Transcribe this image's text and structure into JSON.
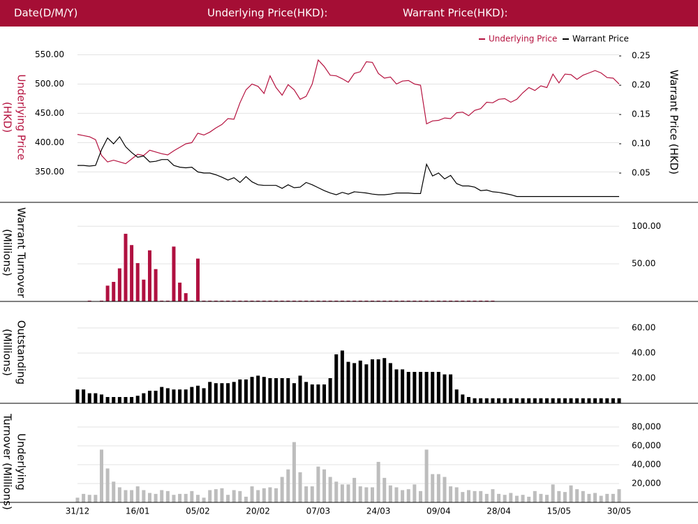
{
  "header": {
    "labels": [
      "Date(D/M/Y)",
      "Underlying Price(HKD):",
      "Warrant Price(HKD):"
    ]
  },
  "chart_data": [
    {
      "type": "line",
      "legend": "top-right",
      "y_label": [
        "Underlying Price",
        "(HKD)"
      ],
      "y2_label": "Warrant  Price (HKD)",
      "ylim": [
        298,
        572
      ],
      "yticks": [
        {
          "value": 350,
          "label": "350.00"
        },
        {
          "value": 400,
          "label": "400.00"
        },
        {
          "value": 450,
          "label": "450.00"
        },
        {
          "value": 500,
          "label": "500.00"
        },
        {
          "value": 550,
          "label": "550.00"
        }
      ],
      "y2lim": [
        0,
        0.274
      ],
      "y2ticks": [
        0.05,
        {
          "value": 0.1,
          "label": "0.10"
        },
        0.15,
        {
          "value": 0.2,
          "label": "0.20"
        },
        0.25
      ],
      "grid": true,
      "series": [
        {
          "name": "Underlying Price",
          "color": "#b5123f",
          "values": [
            414,
            412,
            410,
            405,
            378,
            367,
            370,
            367,
            364,
            372,
            380,
            378,
            387,
            384,
            381,
            379,
            386,
            392,
            398,
            400,
            416,
            413,
            418,
            425,
            431,
            441,
            440,
            468,
            490,
            500,
            496,
            484,
            514,
            494,
            481,
            499,
            490,
            474,
            479,
            500,
            541,
            530,
            515,
            514,
            509,
            503,
            518,
            521,
            538,
            537,
            518,
            510,
            512,
            500,
            505,
            506,
            500,
            498,
            432,
            437,
            438,
            442,
            441,
            451,
            452,
            446,
            455,
            458,
            469,
            468,
            474,
            475,
            469,
            474,
            485,
            494,
            489,
            497,
            494,
            517,
            502,
            517,
            516,
            508,
            515,
            519,
            523,
            519,
            511,
            510,
            500
          ]
        },
        {
          "name": "Warrant Price",
          "color": "#000000",
          "axis": "y2",
          "values": [
            0.063,
            0.063,
            0.062,
            0.063,
            0.09,
            0.11,
            0.1,
            0.112,
            0.095,
            0.085,
            0.077,
            0.079,
            0.069,
            0.07,
            0.073,
            0.073,
            0.063,
            0.06,
            0.059,
            0.06,
            0.052,
            0.05,
            0.05,
            0.047,
            0.043,
            0.038,
            0.042,
            0.034,
            0.044,
            0.035,
            0.03,
            0.029,
            0.029,
            0.029,
            0.024,
            0.03,
            0.025,
            0.026,
            0.034,
            0.03,
            0.025,
            0.02,
            0.016,
            0.013,
            0.017,
            0.014,
            0.018,
            0.017,
            0.016,
            0.014,
            0.013,
            0.013,
            0.014,
            0.016,
            0.016,
            0.016,
            0.015,
            0.015,
            0.065,
            0.045,
            0.05,
            0.04,
            0.046,
            0.032,
            0.028,
            0.028,
            0.026,
            0.02,
            0.021,
            0.018,
            0.017,
            0.015,
            0.013,
            0.01,
            0.01,
            0.01,
            0.01,
            0.01,
            0.01,
            0.01,
            0.01,
            0.01,
            0.01,
            0.01,
            0.01,
            0.01,
            0.01,
            0.01,
            0.01,
            0.01,
            0.01
          ]
        }
      ]
    },
    {
      "type": "bar",
      "y_label": [
        "Warrant  Turnover",
        "(Millions)"
      ],
      "color": "#b01040",
      "ylim": [
        0,
        130
      ],
      "yticks": [
        {
          "value": 50,
          "label": "50.00"
        },
        {
          "value": 100,
          "label": "100.00"
        }
      ],
      "grid": true,
      "values": [
        0,
        0,
        1,
        0,
        1,
        21,
        26,
        44,
        90,
        75,
        51,
        29,
        68,
        43,
        1,
        1,
        73,
        25,
        11,
        1,
        57,
        1,
        1,
        1,
        1,
        1,
        1,
        1,
        1,
        1,
        1,
        1,
        1,
        1,
        1,
        1,
        1,
        1,
        1,
        1,
        1,
        1,
        1,
        1,
        1,
        1,
        1,
        1,
        1,
        1,
        1,
        1,
        1,
        1,
        1,
        1,
        1,
        1,
        1,
        1,
        1,
        1,
        1,
        1,
        1,
        1,
        1,
        1,
        1,
        1,
        0,
        0,
        0,
        0,
        0,
        0,
        0,
        0,
        0,
        0,
        0,
        0,
        0,
        0,
        0,
        0,
        0,
        0,
        0,
        0,
        0
      ]
    },
    {
      "type": "bar",
      "y_label": [
        "Outstanding",
        "(Millions)"
      ],
      "color": "#000000",
      "ylim": [
        0,
        80
      ],
      "yticks": [
        {
          "value": 20,
          "label": "20.00"
        },
        {
          "value": 40,
          "label": "40.00"
        },
        {
          "value": 60,
          "label": "60.00"
        }
      ],
      "grid": true,
      "values": [
        11,
        11,
        8,
        8,
        7,
        5,
        5,
        5,
        5,
        5,
        6,
        8,
        10,
        10,
        13,
        12,
        11,
        11,
        11,
        13,
        14,
        12,
        17,
        16,
        16,
        16,
        17,
        19,
        19,
        21,
        22,
        21,
        20,
        20,
        20,
        20,
        16,
        22,
        17,
        15,
        15,
        15,
        20,
        39,
        42,
        33,
        32,
        34,
        31,
        35,
        35,
        36,
        32,
        27,
        27,
        25,
        25,
        25,
        25,
        25,
        25,
        23,
        23,
        11,
        7,
        5,
        4,
        4,
        4,
        4,
        4,
        4,
        4,
        4,
        4,
        4,
        4,
        4,
        4,
        4,
        4,
        4,
        4,
        4,
        4,
        4,
        4,
        4,
        4,
        4,
        4
      ]
    },
    {
      "type": "bar",
      "y_label": [
        "Underlying",
        "Turnover (Millions)"
      ],
      "color": "#bdbdbd",
      "ylim": [
        0,
        103700
      ],
      "yticks": [
        {
          "value": 20000,
          "label": "20,000"
        },
        {
          "value": 40000,
          "label": "40,000"
        },
        {
          "value": 60000,
          "label": "60,000"
        },
        {
          "value": 80000,
          "label": "80,000"
        }
      ],
      "grid": true,
      "categories": [
        "31/12",
        null,
        null,
        null,
        null,
        null,
        null,
        null,
        null,
        null,
        "16/01",
        null,
        null,
        null,
        null,
        null,
        null,
        null,
        null,
        null,
        "05/02",
        null,
        null,
        null,
        null,
        null,
        null,
        null,
        null,
        null,
        "20/02",
        null,
        null,
        null,
        null,
        null,
        null,
        null,
        null,
        null,
        "07/03",
        null,
        null,
        null,
        null,
        null,
        null,
        null,
        null,
        null,
        "24/03",
        null,
        null,
        null,
        null,
        null,
        null,
        null,
        null,
        null,
        "09/04",
        null,
        null,
        null,
        null,
        null,
        null,
        null,
        null,
        null,
        "28/04",
        null,
        null,
        null,
        null,
        null,
        null,
        null,
        null,
        null,
        "15/05",
        null,
        null,
        null,
        null,
        null,
        null,
        null,
        null,
        null,
        "30/05"
      ],
      "values": [
        5000,
        9000,
        8000,
        8000,
        56000,
        36000,
        22000,
        16000,
        13000,
        13000,
        17000,
        13000,
        10000,
        9000,
        13000,
        12000,
        8000,
        9000,
        9000,
        12000,
        8000,
        5000,
        13000,
        14000,
        15000,
        8000,
        13000,
        12000,
        6000,
        17000,
        13000,
        15000,
        16000,
        15000,
        27000,
        35000,
        64000,
        32000,
        17000,
        17000,
        38000,
        35000,
        27000,
        22000,
        19000,
        19000,
        26000,
        17000,
        16000,
        16000,
        43000,
        26000,
        18000,
        16000,
        13000,
        14000,
        19000,
        12000,
        56000,
        30000,
        30000,
        27000,
        17000,
        16000,
        11000,
        13000,
        12000,
        12000,
        9000,
        14000,
        9000,
        8000,
        10000,
        7000,
        8000,
        6000,
        12000,
        9000,
        8000,
        19000,
        12000,
        11000,
        18000,
        14000,
        12000,
        9000,
        10000,
        7000,
        9000,
        9000,
        14000
      ]
    }
  ]
}
